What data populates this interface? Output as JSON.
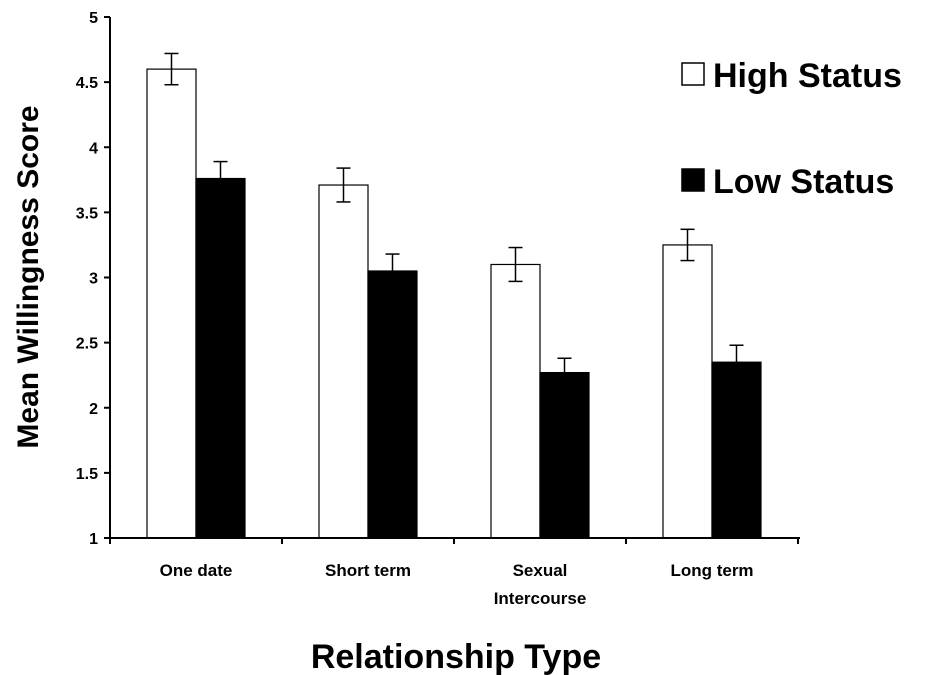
{
  "chart_data": {
    "type": "bar",
    "title": "",
    "xlabel": "Relationship Type",
    "ylabel": "Mean Willingness Score",
    "categories": [
      "One date",
      "Short term",
      "Sexual Intercourse",
      "Long term"
    ],
    "category_lines": [
      [
        "One date"
      ],
      [
        "Short term"
      ],
      [
        "Sexual",
        "Intercourse"
      ],
      [
        "Long term"
      ]
    ],
    "series": [
      {
        "name": "High Status",
        "values": [
          4.6,
          3.71,
          3.1,
          3.25
        ],
        "error": [
          0.12,
          0.13,
          0.13,
          0.12
        ],
        "color": "#ffffff"
      },
      {
        "name": "Low Status",
        "values": [
          3.76,
          3.05,
          2.27,
          2.35
        ],
        "error": [
          0.13,
          0.13,
          0.11,
          0.13
        ],
        "color": "#000000"
      }
    ],
    "ylim": [
      1,
      5
    ],
    "yticks": [
      "1",
      "1.5",
      "2",
      "2.5",
      "3",
      "3.5",
      "4",
      "4.5",
      "5"
    ],
    "grid": false,
    "legend_position": "top-right"
  }
}
